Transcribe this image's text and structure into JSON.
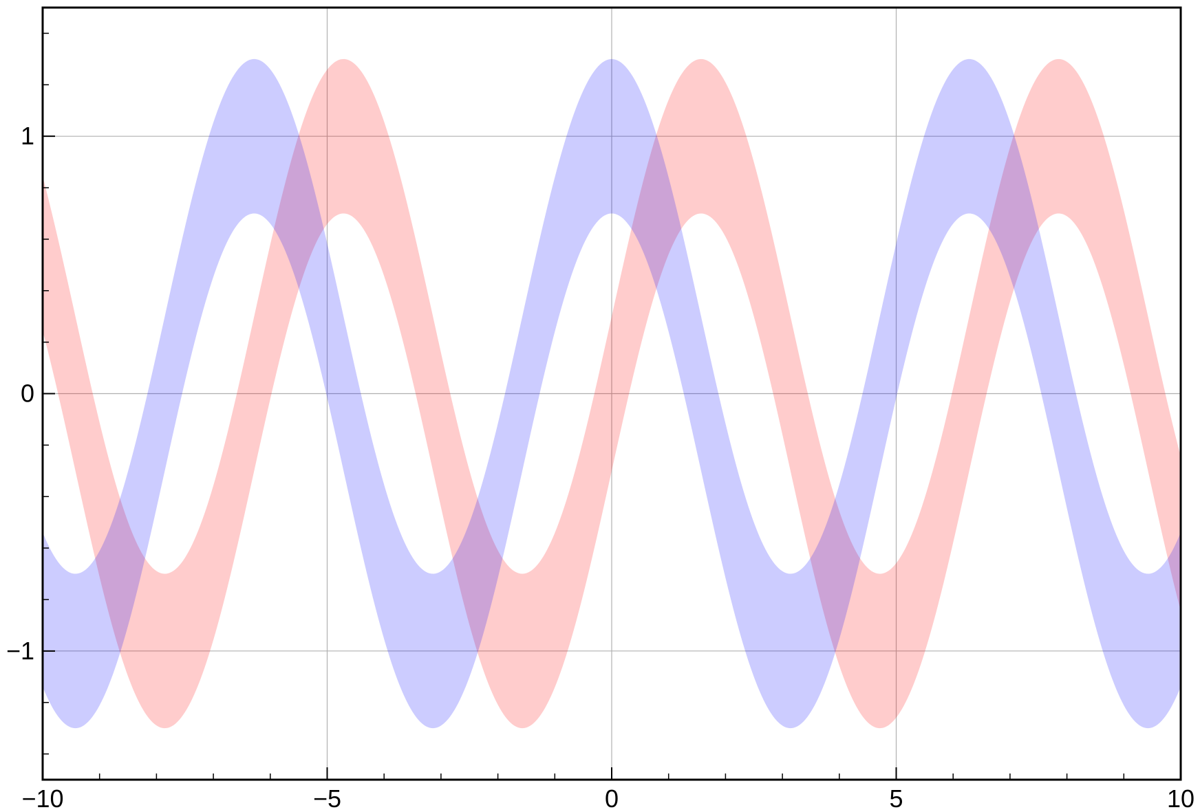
{
  "chart_data": {
    "type": "area",
    "title": "",
    "xlabel": "",
    "ylabel": "",
    "xlim": [
      -10,
      10
    ],
    "ylim": [
      -1.5,
      1.5
    ],
    "grid": true,
    "x_ticks": [
      -10,
      -5,
      0,
      5,
      10
    ],
    "x_tick_labels": [
      "−10",
      "−5",
      "0",
      "5",
      "10"
    ],
    "y_ticks": [
      -1,
      0,
      1
    ],
    "y_tick_labels": [
      "−1",
      "0",
      "1"
    ],
    "x_minor_step": 1,
    "y_minor_step": 0.2,
    "series": [
      {
        "function": "sin(x)",
        "lower": "sin(x) - 0.3",
        "upper": "sin(x) + 0.3",
        "color": "#ff0000",
        "alpha": 0.2
      },
      {
        "function": "cos(x)",
        "lower": "cos(x) - 0.3",
        "upper": "cos(x) + 0.3",
        "color": "#0000ff",
        "alpha": 0.2
      }
    ]
  }
}
